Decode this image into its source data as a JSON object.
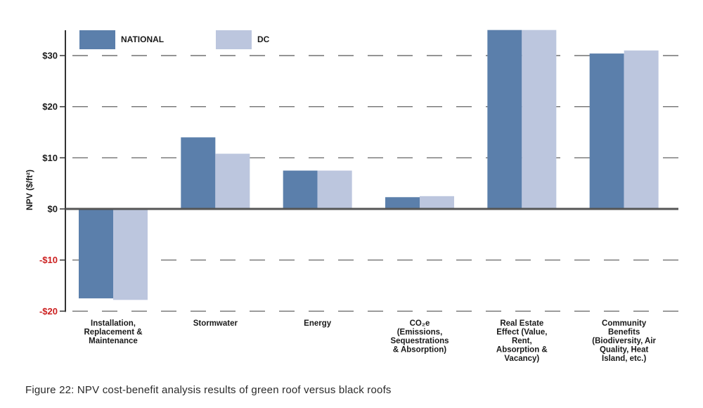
{
  "chart_data": {
    "type": "bar",
    "title": "",
    "xlabel": "",
    "ylabel": "NPV ($/ft²)",
    "ylim": [
      -20,
      35
    ],
    "yticks": [
      {
        "value": 30,
        "label": "$30",
        "color": "#1a1a1a"
      },
      {
        "value": 20,
        "label": "$20",
        "color": "#1a1a1a"
      },
      {
        "value": 10,
        "label": "$10",
        "color": "#1a1a1a"
      },
      {
        "value": 0,
        "label": "$0",
        "color": "#1a1a1a"
      },
      {
        "value": -10,
        "label": "-$10",
        "color": "#cc1f1f"
      },
      {
        "value": -20,
        "label": "-$20",
        "color": "#cc1f1f"
      }
    ],
    "categories": [
      [
        "Installation,",
        "Replacement &",
        "Maintenance"
      ],
      [
        "Stormwater"
      ],
      [
        "Energy"
      ],
      [
        "CO₂e",
        "(Emissions,",
        "Sequestrations",
        "& Absorption)"
      ],
      [
        "Real Estate",
        "Effect (Value,",
        "Rent,",
        "Absorption &",
        "Vacancy)"
      ],
      [
        "Community",
        "Benefits",
        "(Biodiversity, Air",
        "Quality, Heat",
        "Island, etc.)"
      ]
    ],
    "series": [
      {
        "name": "NATIONAL",
        "color": "#5b7fab",
        "values": [
          -17.5,
          14,
          7.5,
          2.3,
          35,
          30.4
        ]
      },
      {
        "name": "DC",
        "color": "#bcc6de",
        "values": [
          -17.8,
          10.8,
          7.5,
          2.5,
          35,
          31
        ]
      }
    ],
    "grid": true,
    "legend": "top-left"
  },
  "caption": "Figure 22: NPV cost-benefit analysis results of green roof versus black roofs"
}
